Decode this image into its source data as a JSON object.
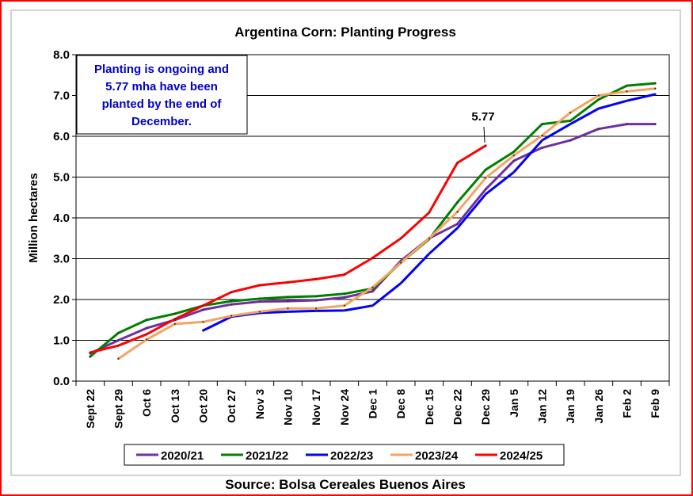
{
  "chart_data": {
    "type": "line",
    "title": "Argentina Corn: Planting Progress",
    "xlabel": "",
    "ylabel": "Million hectares",
    "ylim": [
      0.0,
      8.0
    ],
    "yticks": [
      "0.0",
      "1.0",
      "2.0",
      "3.0",
      "4.0",
      "5.0",
      "6.0",
      "7.0",
      "8.0"
    ],
    "categories": [
      "Sept 22",
      "Sept 29",
      "Oct 6",
      "Oct 13",
      "Oct 20",
      "Oct 27",
      "Nov 3",
      "Nov 10",
      "Nov 17",
      "Nov 24",
      "Dec 1",
      "Dec 8",
      "Dec 15",
      "Dec 22",
      "Dec 29",
      "Jan 5",
      "Jan 12",
      "Jan 19",
      "Jan 26",
      "Feb 2",
      "Feb 9"
    ],
    "series": [
      {
        "name": "2020/21",
        "color": "#7030a0",
        "values": [
          0.68,
          1.0,
          1.3,
          1.5,
          1.75,
          1.88,
          1.95,
          1.96,
          1.98,
          2.05,
          2.2,
          2.95,
          3.5,
          3.85,
          4.7,
          5.4,
          5.72,
          5.9,
          6.18,
          6.3,
          6.3
        ]
      },
      {
        "name": "2021/22",
        "color": "#008000",
        "values": [
          0.6,
          1.18,
          1.5,
          1.65,
          1.85,
          1.96,
          2.02,
          2.06,
          2.08,
          2.14,
          2.27,
          2.9,
          3.48,
          4.38,
          5.18,
          5.62,
          6.3,
          6.38,
          6.9,
          7.24,
          7.3
        ]
      },
      {
        "name": "2022/23",
        "color": "#0000ff",
        "values": [
          null,
          null,
          null,
          null,
          1.24,
          1.58,
          1.67,
          1.7,
          1.72,
          1.73,
          1.85,
          2.4,
          3.12,
          3.75,
          4.58,
          5.12,
          5.9,
          6.3,
          6.68,
          6.87,
          7.03
        ]
      },
      {
        "name": "2023/24",
        "color": "#f4a460",
        "values": [
          null,
          0.55,
          1.02,
          1.4,
          1.45,
          1.6,
          1.7,
          1.78,
          1.78,
          1.85,
          2.3,
          2.9,
          3.5,
          4.15,
          4.98,
          5.53,
          6.02,
          6.58,
          7.0,
          7.1,
          7.17
        ]
      },
      {
        "name": "2024/25",
        "color": "#ff0000",
        "values": [
          0.7,
          0.87,
          1.15,
          1.52,
          1.85,
          2.18,
          2.35,
          2.42,
          2.5,
          2.61,
          3.02,
          3.5,
          4.13,
          5.35,
          5.77,
          null,
          null,
          null,
          null,
          null,
          null
        ]
      }
    ],
    "last_value_label": "5.77",
    "callout": [
      "Planting is ongoing and",
      "5.77 mha have been",
      "planted by the end of",
      "December."
    ],
    "source": "Source: Bolsa Cereales Buenos Aires"
  }
}
